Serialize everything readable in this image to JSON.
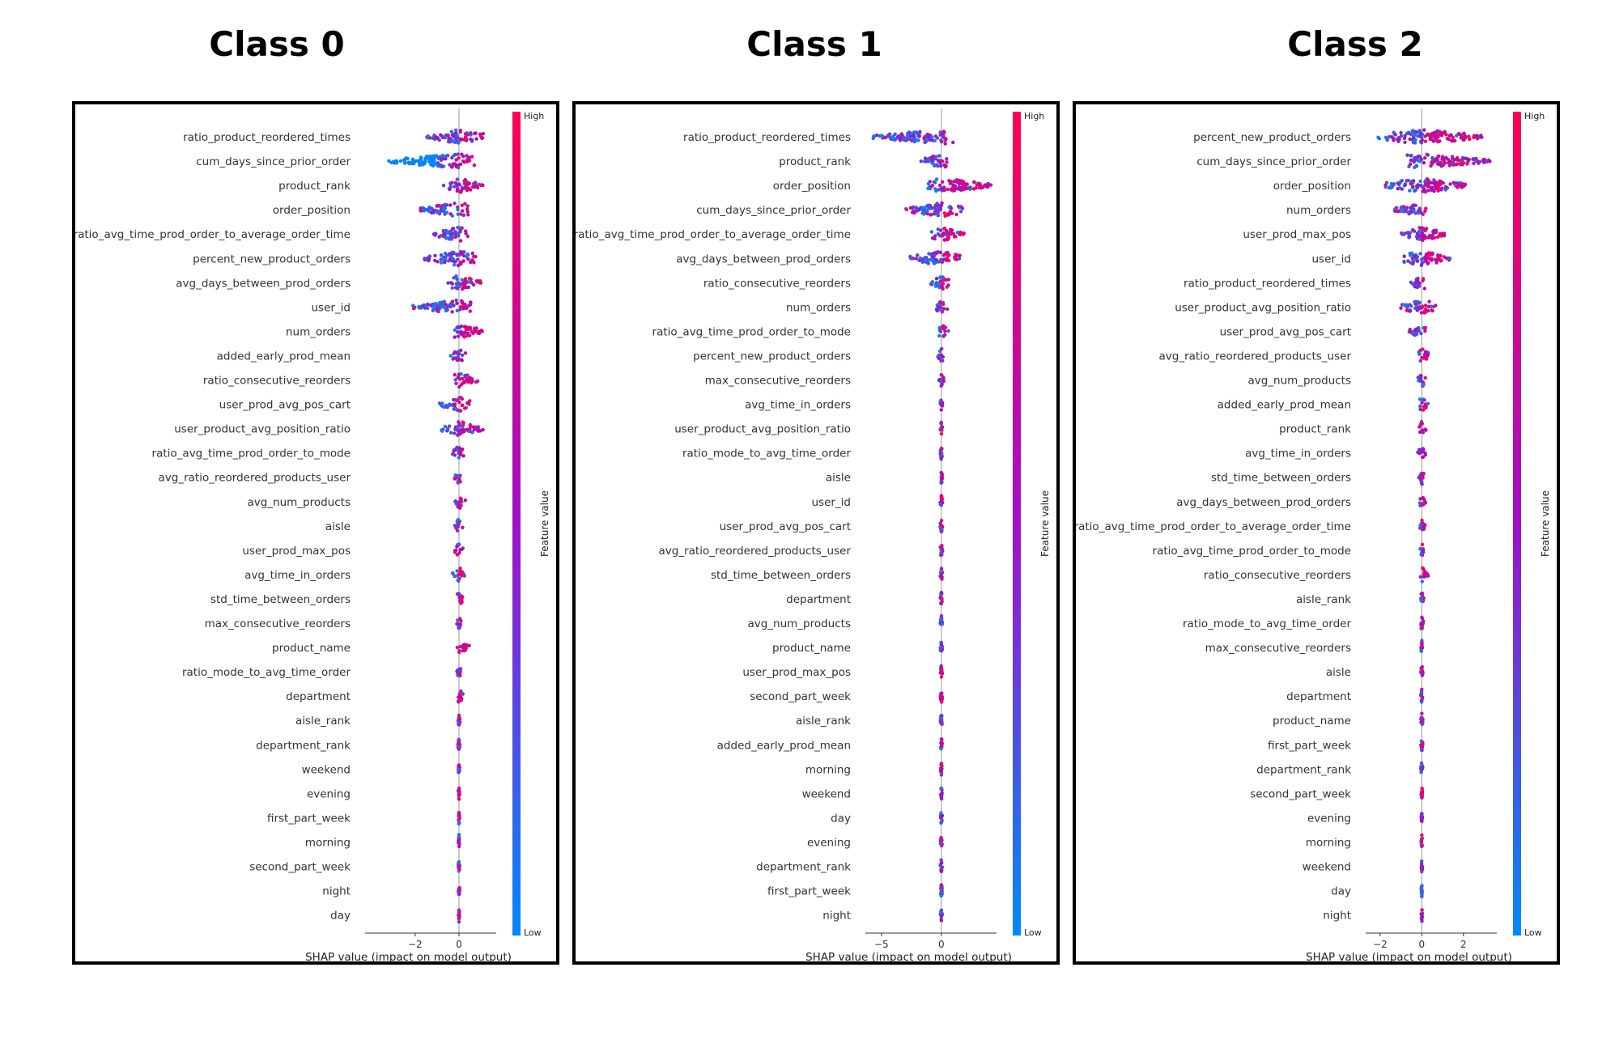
{
  "colors": {
    "low": "#008AFA",
    "mid": "#A010C8",
    "high": "#FF0052"
  },
  "colorbar": {
    "high_label": "High",
    "low_label": "Low",
    "title": "Feature value"
  },
  "chart_data": [
    {
      "type": "scatter",
      "title": "Class 0",
      "xlabel": "SHAP value (impact on model output)",
      "xlim": [
        -4.1,
        1.7
      ],
      "xticks": [
        -2,
        0
      ],
      "tick_labels": [
        "−2",
        "0"
      ],
      "features": [
        "ratio_product_reordered_times",
        "cum_days_since_prior_order",
        "product_rank",
        "order_position",
        "ratio_avg_time_prod_order_to_average_order_time",
        "percent_new_product_orders",
        "avg_days_between_prod_orders",
        "user_id",
        "num_orders",
        "added_early_prod_mean",
        "ratio_consecutive_reorders",
        "user_prod_avg_pos_cart",
        "user_product_avg_position_ratio",
        "ratio_avg_time_prod_order_to_mode",
        "avg_ratio_reordered_products_user",
        "avg_num_products",
        "aisle",
        "user_prod_max_pos",
        "avg_time_in_orders",
        "std_time_between_orders",
        "max_consecutive_reorders",
        "product_name",
        "ratio_mode_to_avg_time_order",
        "department",
        "aisle_rank",
        "department_rank",
        "weekend",
        "evening",
        "first_part_week",
        "morning",
        "second_part_week",
        "night",
        "day"
      ],
      "ranges": [
        [
          -1.5,
          1.1
        ],
        [
          -3.2,
          0.8
        ],
        [
          -0.7,
          1.1
        ],
        [
          -1.8,
          0.5
        ],
        [
          -1.2,
          0.5
        ],
        [
          -1.6,
          0.9
        ],
        [
          -0.5,
          1.0
        ],
        [
          -2.1,
          0.6
        ],
        [
          -0.4,
          1.1
        ],
        [
          -0.4,
          0.3
        ],
        [
          -0.2,
          0.9
        ],
        [
          -0.9,
          0.5
        ],
        [
          -0.8,
          1.1
        ],
        [
          -0.3,
          0.3
        ],
        [
          -0.2,
          0.2
        ],
        [
          -0.2,
          0.3
        ],
        [
          -0.3,
          0.2
        ],
        [
          -0.2,
          0.2
        ],
        [
          -0.3,
          0.3
        ],
        [
          -0.1,
          0.2
        ],
        [
          -0.1,
          0.1
        ],
        [
          -0.1,
          0.5
        ],
        [
          -0.1,
          0.1
        ],
        [
          -0.05,
          0.2
        ],
        [
          -0.05,
          0.05
        ],
        [
          -0.05,
          0.05
        ],
        [
          -0.03,
          0.03
        ],
        [
          -0.03,
          0.03
        ],
        [
          -0.03,
          0.03
        ],
        [
          -0.03,
          0.03
        ],
        [
          -0.03,
          0.03
        ],
        [
          -0.03,
          0.03
        ],
        [
          -0.03,
          0.03
        ]
      ]
    },
    {
      "type": "scatter",
      "title": "Class 1",
      "xlabel": "SHAP value (impact on model output)",
      "xlim": [
        -6,
        4.6
      ],
      "xticks": [
        -5,
        0
      ],
      "tick_labels": [
        "−5",
        "0"
      ],
      "features": [
        "ratio_product_reordered_times",
        "product_rank",
        "order_position",
        "cum_days_since_prior_order",
        "ratio_avg_time_prod_order_to_average_order_time",
        "avg_days_between_prod_orders",
        "ratio_consecutive_reorders",
        "num_orders",
        "ratio_avg_time_prod_order_to_mode",
        "percent_new_product_orders",
        "max_consecutive_reorders",
        "avg_time_in_orders",
        "user_product_avg_position_ratio",
        "ratio_mode_to_avg_time_order",
        "aisle",
        "user_id",
        "user_prod_avg_pos_cart",
        "avg_ratio_reordered_products_user",
        "std_time_between_orders",
        "department",
        "avg_num_products",
        "product_name",
        "user_prod_max_pos",
        "second_part_week",
        "aisle_rank",
        "added_early_prod_mean",
        "morning",
        "weekend",
        "day",
        "evening",
        "department_rank",
        "first_part_week",
        "night"
      ],
      "ranges": [
        [
          -5.7,
          1.1
        ],
        [
          -1.8,
          0.5
        ],
        [
          -1.2,
          4.2
        ],
        [
          -3.1,
          1.8
        ],
        [
          -0.9,
          1.9
        ],
        [
          -2.9,
          1.6
        ],
        [
          -0.9,
          0.9
        ],
        [
          -0.6,
          0.5
        ],
        [
          -0.2,
          0.6
        ],
        [
          -0.4,
          0.2
        ],
        [
          -0.2,
          0.2
        ],
        [
          -0.1,
          0.1
        ],
        [
          -0.1,
          0.1
        ],
        [
          -0.1,
          0.1
        ],
        [
          -0.1,
          0.1
        ],
        [
          -0.1,
          0.1
        ],
        [
          -0.1,
          0.1
        ],
        [
          -0.1,
          0.1
        ],
        [
          -0.1,
          0.1
        ],
        [
          -0.1,
          0.1
        ],
        [
          -0.1,
          0.1
        ],
        [
          -0.1,
          0.1
        ],
        [
          -0.1,
          0.1
        ],
        [
          -0.08,
          0.08
        ],
        [
          -0.08,
          0.08
        ],
        [
          -0.08,
          0.08
        ],
        [
          -0.08,
          0.08
        ],
        [
          -0.08,
          0.08
        ],
        [
          -0.08,
          0.08
        ],
        [
          -0.08,
          0.08
        ],
        [
          -0.08,
          0.08
        ],
        [
          -0.08,
          0.08
        ],
        [
          -0.08,
          0.08
        ]
      ]
    },
    {
      "type": "scatter",
      "title": "Class 2",
      "xlabel": "SHAP value (impact on model output)",
      "xlim": [
        -2.5,
        3.6
      ],
      "xticks": [
        -2,
        0,
        2
      ],
      "tick_labels": [
        "−2",
        "0",
        "2"
      ],
      "features": [
        "percent_new_product_orders",
        "cum_days_since_prior_order",
        "order_position",
        "num_orders",
        "user_prod_max_pos",
        "user_id",
        "ratio_product_reordered_times",
        "user_product_avg_position_ratio",
        "user_prod_avg_pos_cart",
        "avg_ratio_reordered_products_user",
        "avg_num_products",
        "added_early_prod_mean",
        "product_rank",
        "avg_time_in_orders",
        "std_time_between_orders",
        "avg_days_between_prod_orders",
        "ratio_avg_time_prod_order_to_average_order_time",
        "ratio_avg_time_prod_order_to_mode",
        "ratio_consecutive_reorders",
        "aisle_rank",
        "ratio_mode_to_avg_time_order",
        "max_consecutive_reorders",
        "aisle",
        "department",
        "product_name",
        "first_part_week",
        "department_rank",
        "second_part_week",
        "evening",
        "morning",
        "weekend",
        "day",
        "night"
      ],
      "ranges": [
        [
          -2.1,
          2.9
        ],
        [
          -0.7,
          3.3
        ],
        [
          -1.8,
          2.3
        ],
        [
          -1.3,
          0.2
        ],
        [
          -1.0,
          1.1
        ],
        [
          -0.9,
          1.4
        ],
        [
          -0.6,
          0.2
        ],
        [
          -1.1,
          0.7
        ],
        [
          -0.6,
          0.2
        ],
        [
          -0.2,
          0.4
        ],
        [
          -0.2,
          0.3
        ],
        [
          -0.2,
          0.3
        ],
        [
          -0.2,
          0.2
        ],
        [
          -0.2,
          0.2
        ],
        [
          -0.15,
          0.1
        ],
        [
          -0.1,
          0.2
        ],
        [
          -0.1,
          0.15
        ],
        [
          -0.1,
          0.1
        ],
        [
          -0.1,
          0.4
        ],
        [
          -0.05,
          0.1
        ],
        [
          -0.05,
          0.1
        ],
        [
          -0.05,
          0.05
        ],
        [
          -0.05,
          0.05
        ],
        [
          -0.05,
          0.05
        ],
        [
          -0.05,
          0.05
        ],
        [
          -0.05,
          0.05
        ],
        [
          -0.05,
          0.05
        ],
        [
          -0.03,
          0.03
        ],
        [
          -0.03,
          0.03
        ],
        [
          -0.03,
          0.03
        ],
        [
          -0.03,
          0.03
        ],
        [
          -0.03,
          0.03
        ],
        [
          -0.03,
          0.03
        ]
      ]
    }
  ]
}
